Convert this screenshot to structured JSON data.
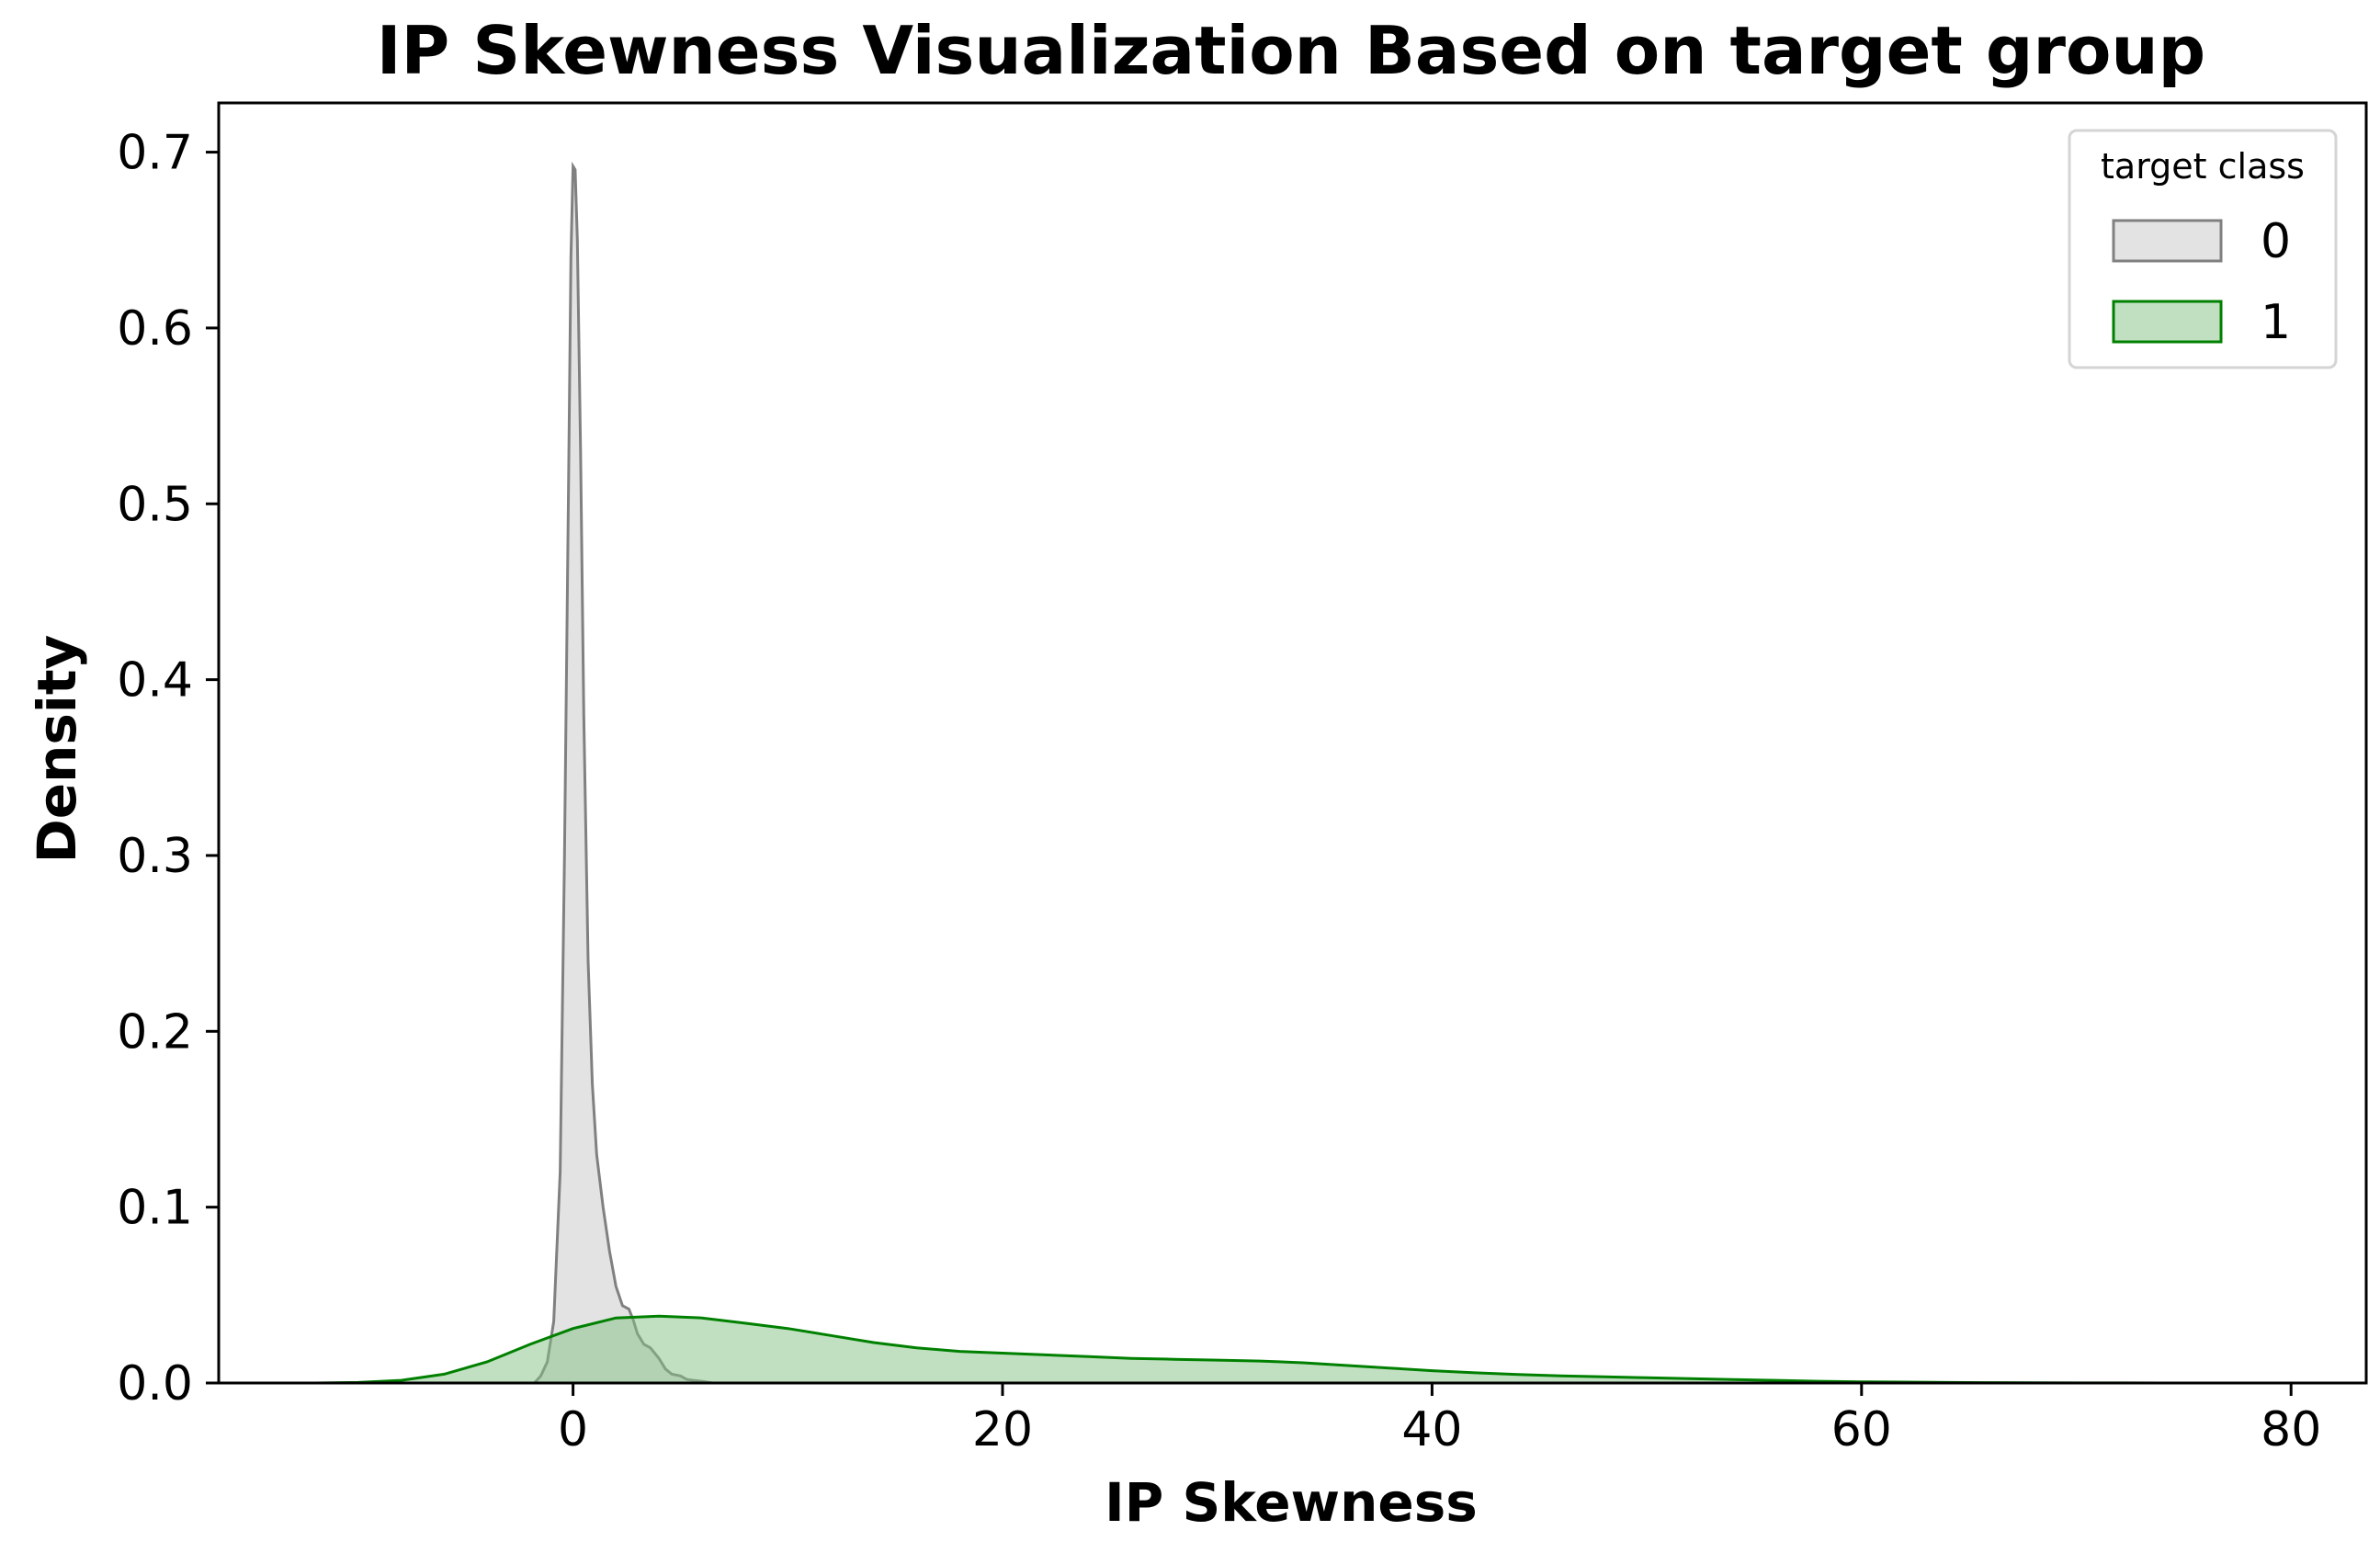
{
  "chart_data": {
    "type": "area",
    "title": "IP Skewness Visualization Based on target group",
    "xlabel": "IP Skewness",
    "ylabel": "Density",
    "xlim": [
      -16.5,
      83.5
    ],
    "ylim": [
      0,
      0.728
    ],
    "xticks": [
      0,
      20,
      40,
      60,
      80
    ],
    "yticks": [
      0.0,
      0.1,
      0.2,
      0.3,
      0.4,
      0.5,
      0.6,
      0.7
    ],
    "grid": false,
    "legend": {
      "title": "target class",
      "placement": "top-right"
    },
    "series": [
      {
        "name": "0",
        "line_color": "#808080",
        "fill_color": "#c8c8c8",
        "x": [
          -1.8,
          -1.5,
          -1.2,
          -0.9,
          -0.6,
          -0.4,
          -0.2,
          -0.1,
          0.0,
          0.1,
          0.2,
          0.35,
          0.5,
          0.7,
          0.9,
          1.1,
          1.4,
          1.7,
          2.0,
          2.3,
          2.6,
          2.8,
          3.0,
          3.3,
          3.6,
          4.0,
          4.3,
          4.6,
          5.0,
          5.3,
          5.6,
          6.0,
          6.5
        ],
        "y": [
          0.0,
          0.004,
          0.012,
          0.035,
          0.12,
          0.3,
          0.52,
          0.64,
          0.692,
          0.69,
          0.65,
          0.53,
          0.38,
          0.24,
          0.17,
          0.13,
          0.1,
          0.075,
          0.055,
          0.044,
          0.042,
          0.036,
          0.028,
          0.022,
          0.02,
          0.014,
          0.008,
          0.005,
          0.004,
          0.002,
          0.0015,
          0.001,
          0.0
        ]
      },
      {
        "name": "1",
        "line_color": "#008000",
        "fill_color": "#84c284",
        "x": [
          -12,
          -10,
          -8,
          -6,
          -4,
          -2,
          0,
          2,
          4,
          6,
          8,
          10,
          12,
          14,
          16,
          18,
          20,
          22,
          24,
          26,
          28,
          30,
          32,
          34,
          36,
          38,
          40,
          42,
          44,
          46,
          48,
          50,
          52,
          54,
          56,
          58,
          60,
          62,
          64,
          66,
          68,
          70,
          72,
          74,
          76,
          78,
          80
        ],
        "y": [
          0.0,
          0.0003,
          0.0015,
          0.005,
          0.012,
          0.022,
          0.031,
          0.037,
          0.038,
          0.037,
          0.034,
          0.031,
          0.027,
          0.023,
          0.02,
          0.018,
          0.017,
          0.016,
          0.015,
          0.014,
          0.0135,
          0.013,
          0.0125,
          0.0115,
          0.01,
          0.0085,
          0.007,
          0.0058,
          0.0048,
          0.004,
          0.0035,
          0.003,
          0.0025,
          0.002,
          0.0015,
          0.001,
          0.0007,
          0.0005,
          0.0003,
          0.0002,
          0.0001,
          5e-05,
          3e-05,
          2e-05,
          1e-05,
          0.0,
          0.0
        ]
      }
    ]
  }
}
